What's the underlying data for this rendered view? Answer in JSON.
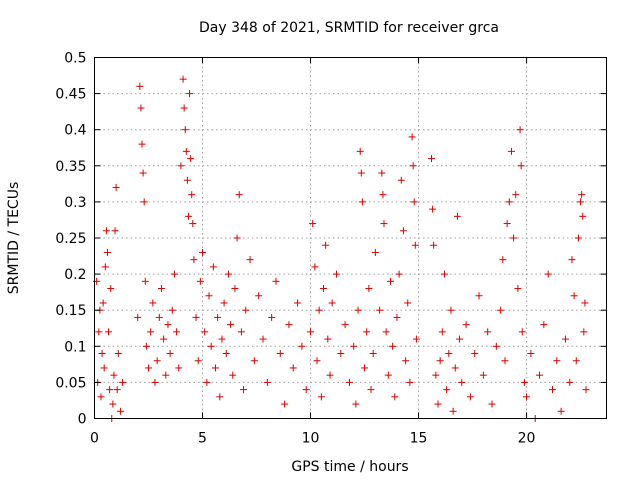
{
  "chart_data": {
    "type": "scatter",
    "title": "Day 348 of 2021, SRMTID for receiver grca",
    "xlabel": "GPS time / hours",
    "ylabel": "SRMTID / TECUs",
    "xlim": [
      0,
      23.7
    ],
    "ylim": [
      0,
      0.5
    ],
    "x_ticks": [
      0,
      5,
      10,
      15,
      20
    ],
    "y_ticks": [
      0,
      0.05,
      0.1,
      0.15,
      0.2,
      0.25,
      0.3,
      0.35,
      0.4,
      0.45,
      0.5
    ],
    "x_tick_labels": [
      "0",
      "5",
      "10",
      "15",
      "20"
    ],
    "y_tick_labels": [
      "0",
      "0.05",
      "0.1",
      "0.15",
      "0.2",
      "0.25",
      "0.3",
      "0.35",
      "0.4",
      "0.45",
      "0.5"
    ],
    "grid": true,
    "marker": "+",
    "color": "#dd0000",
    "series": [
      {
        "name": "grca",
        "points": [
          [
            0.1,
            0.19
          ],
          [
            0.15,
            0.05
          ],
          [
            0.2,
            0.12
          ],
          [
            0.25,
            0.15
          ],
          [
            0.3,
            0.03
          ],
          [
            0.35,
            0.09
          ],
          [
            0.4,
            0.16
          ],
          [
            0.45,
            0.07
          ],
          [
            0.5,
            0.21
          ],
          [
            0.55,
            0.26
          ],
          [
            0.6,
            0.23
          ],
          [
            0.65,
            0.12
          ],
          [
            0.7,
            0.04
          ],
          [
            0.75,
            0.18
          ],
          [
            0.8,
            0.0
          ],
          [
            0.85,
            0.02
          ],
          [
            0.9,
            0.06
          ],
          [
            0.95,
            0.26
          ],
          [
            1.0,
            0.32
          ],
          [
            1.05,
            0.04
          ],
          [
            1.1,
            0.09
          ],
          [
            1.2,
            0.01
          ],
          [
            1.3,
            0.05
          ],
          [
            2.0,
            0.14
          ],
          [
            2.1,
            0.46
          ],
          [
            2.15,
            0.43
          ],
          [
            2.2,
            0.38
          ],
          [
            2.25,
            0.34
          ],
          [
            2.3,
            0.3
          ],
          [
            2.35,
            0.19
          ],
          [
            2.4,
            0.1
          ],
          [
            2.5,
            0.07
          ],
          [
            2.6,
            0.12
          ],
          [
            2.7,
            0.16
          ],
          [
            2.8,
            0.05
          ],
          [
            2.9,
            0.08
          ],
          [
            3.0,
            0.14
          ],
          [
            3.1,
            0.18
          ],
          [
            3.2,
            0.11
          ],
          [
            3.3,
            0.06
          ],
          [
            3.4,
            0.13
          ],
          [
            3.5,
            0.09
          ],
          [
            3.6,
            0.15
          ],
          [
            3.7,
            0.2
          ],
          [
            3.8,
            0.12
          ],
          [
            3.9,
            0.07
          ],
          [
            4.0,
            0.35
          ],
          [
            4.1,
            0.47
          ],
          [
            4.15,
            0.43
          ],
          [
            4.2,
            0.4
          ],
          [
            4.25,
            0.37
          ],
          [
            4.3,
            0.33
          ],
          [
            4.35,
            0.28
          ],
          [
            4.4,
            0.45
          ],
          [
            4.45,
            0.36
          ],
          [
            4.5,
            0.31
          ],
          [
            4.55,
            0.27
          ],
          [
            4.6,
            0.22
          ],
          [
            4.7,
            0.14
          ],
          [
            4.8,
            0.08
          ],
          [
            4.9,
            0.19
          ],
          [
            5.0,
            0.23
          ],
          [
            5.1,
            0.12
          ],
          [
            5.2,
            0.05
          ],
          [
            5.3,
            0.17
          ],
          [
            5.4,
            0.1
          ],
          [
            5.5,
            0.21
          ],
          [
            5.6,
            0.07
          ],
          [
            5.7,
            0.14
          ],
          [
            5.8,
            0.03
          ],
          [
            5.9,
            0.11
          ],
          [
            6.0,
            0.16
          ],
          [
            6.1,
            0.09
          ],
          [
            6.2,
            0.2
          ],
          [
            6.3,
            0.13
          ],
          [
            6.4,
            0.06
          ],
          [
            6.5,
            0.18
          ],
          [
            6.6,
            0.25
          ],
          [
            6.7,
            0.31
          ],
          [
            6.8,
            0.12
          ],
          [
            6.9,
            0.04
          ],
          [
            7.0,
            0.15
          ],
          [
            7.2,
            0.22
          ],
          [
            7.4,
            0.08
          ],
          [
            7.6,
            0.17
          ],
          [
            7.8,
            0.11
          ],
          [
            8.0,
            0.05
          ],
          [
            8.2,
            0.14
          ],
          [
            8.4,
            0.19
          ],
          [
            8.6,
            0.09
          ],
          [
            8.8,
            0.02
          ],
          [
            9.0,
            0.13
          ],
          [
            9.2,
            0.07
          ],
          [
            9.4,
            0.16
          ],
          [
            9.6,
            0.1
          ],
          [
            9.8,
            0.04
          ],
          [
            10.0,
            0.12
          ],
          [
            10.1,
            0.27
          ],
          [
            10.2,
            0.21
          ],
          [
            10.3,
            0.08
          ],
          [
            10.4,
            0.15
          ],
          [
            10.5,
            0.03
          ],
          [
            10.6,
            0.18
          ],
          [
            10.7,
            0.24
          ],
          [
            10.8,
            0.11
          ],
          [
            10.9,
            0.06
          ],
          [
            11.0,
            0.16
          ],
          [
            11.2,
            0.2
          ],
          [
            11.4,
            0.09
          ],
          [
            11.6,
            0.13
          ],
          [
            11.8,
            0.05
          ],
          [
            12.0,
            0.1
          ],
          [
            12.1,
            0.02
          ],
          [
            12.2,
            0.15
          ],
          [
            12.3,
            0.37
          ],
          [
            12.35,
            0.34
          ],
          [
            12.4,
            0.3
          ],
          [
            12.5,
            0.07
          ],
          [
            12.6,
            0.12
          ],
          [
            12.7,
            0.18
          ],
          [
            12.8,
            0.04
          ],
          [
            12.9,
            0.09
          ],
          [
            13.0,
            0.23
          ],
          [
            13.2,
            0.15
          ],
          [
            13.3,
            0.34
          ],
          [
            13.35,
            0.31
          ],
          [
            13.4,
            0.27
          ],
          [
            13.5,
            0.12
          ],
          [
            13.6,
            0.06
          ],
          [
            13.7,
            0.19
          ],
          [
            13.8,
            0.1
          ],
          [
            13.9,
            0.03
          ],
          [
            14.0,
            0.14
          ],
          [
            14.1,
            0.2
          ],
          [
            14.2,
            0.33
          ],
          [
            14.3,
            0.26
          ],
          [
            14.4,
            0.08
          ],
          [
            14.5,
            0.16
          ],
          [
            14.6,
            0.05
          ],
          [
            14.7,
            0.39
          ],
          [
            14.75,
            0.35
          ],
          [
            14.8,
            0.3
          ],
          [
            14.85,
            0.24
          ],
          [
            14.9,
            0.11
          ],
          [
            15.6,
            0.36
          ],
          [
            15.65,
            0.29
          ],
          [
            15.7,
            0.24
          ],
          [
            15.8,
            0.06
          ],
          [
            15.9,
            0.02
          ],
          [
            16.0,
            0.08
          ],
          [
            16.1,
            0.12
          ],
          [
            16.2,
            0.2
          ],
          [
            16.3,
            0.04
          ],
          [
            16.4,
            0.09
          ],
          [
            16.5,
            0.15
          ],
          [
            16.6,
            0.01
          ],
          [
            16.7,
            0.07
          ],
          [
            16.8,
            0.28
          ],
          [
            16.9,
            0.11
          ],
          [
            17.0,
            0.05
          ],
          [
            17.2,
            0.13
          ],
          [
            17.4,
            0.03
          ],
          [
            17.6,
            0.09
          ],
          [
            17.8,
            0.17
          ],
          [
            18.0,
            0.06
          ],
          [
            18.2,
            0.12
          ],
          [
            18.4,
            0.02
          ],
          [
            18.6,
            0.1
          ],
          [
            18.8,
            0.15
          ],
          [
            18.9,
            0.22
          ],
          [
            19.0,
            0.08
          ],
          [
            19.1,
            0.27
          ],
          [
            19.2,
            0.3
          ],
          [
            19.3,
            0.37
          ],
          [
            19.4,
            0.25
          ],
          [
            19.5,
            0.31
          ],
          [
            19.6,
            0.18
          ],
          [
            19.7,
            0.4
          ],
          [
            19.75,
            0.35
          ],
          [
            19.8,
            0.12
          ],
          [
            19.9,
            0.05
          ],
          [
            20.0,
            0.03
          ],
          [
            20.2,
            0.09
          ],
          [
            20.4,
            0.0
          ],
          [
            20.6,
            0.06
          ],
          [
            20.8,
            0.13
          ],
          [
            21.0,
            0.2
          ],
          [
            21.2,
            0.04
          ],
          [
            21.4,
            0.08
          ],
          [
            21.6,
            0.01
          ],
          [
            21.8,
            0.11
          ],
          [
            22.0,
            0.05
          ],
          [
            22.1,
            0.22
          ],
          [
            22.2,
            0.17
          ],
          [
            22.3,
            0.08
          ],
          [
            22.4,
            0.25
          ],
          [
            22.5,
            0.3
          ],
          [
            22.55,
            0.31
          ],
          [
            22.6,
            0.28
          ],
          [
            22.65,
            0.12
          ],
          [
            22.7,
            0.16
          ],
          [
            22.75,
            0.04
          ]
        ]
      }
    ]
  }
}
